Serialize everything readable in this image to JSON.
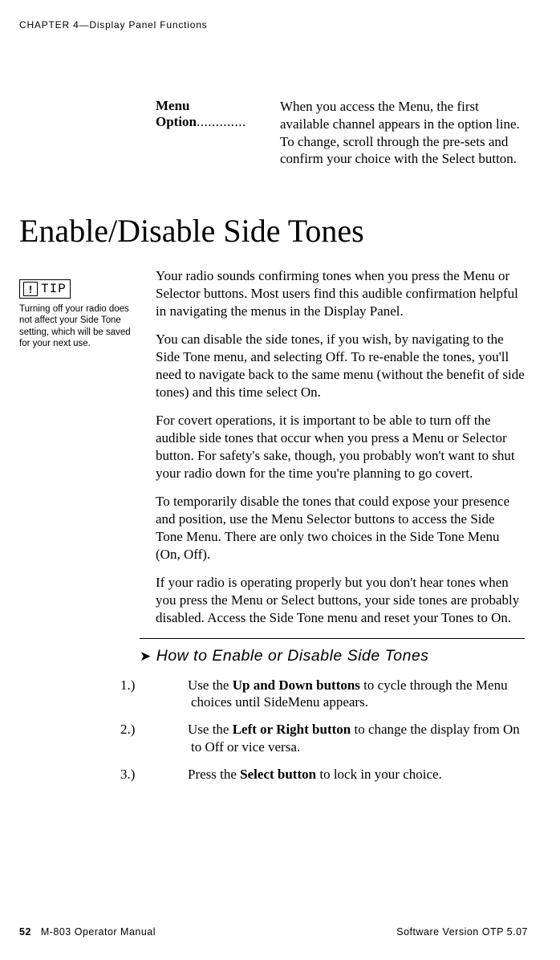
{
  "runningHead": "CHAPTER 4—Display Panel Functions",
  "menuOption": {
    "label": "Menu Option",
    "dots": ".............",
    "text": "When you access the Menu, the first available channel appears in the option line. To change, scroll through the pre-sets and confirm your choice with the Select button."
  },
  "sectionTitle": "Enable/Disable Side Tones",
  "tip": {
    "badgeWarn": "!",
    "badgeWord": "TIP",
    "text": "Turning off your radio does not affect your Side Tone setting, which will be saved for your next use."
  },
  "paras": {
    "p1": "Your radio sounds confirming tones when you press the Menu or Selector buttons. Most users find this audible confirmation helpful in navigating the menus in the Display Panel.",
    "p2": "You can disable the side tones, if you wish, by navigating to the Side Tone menu, and selecting Off. To re-enable the tones, you'll need to navigate back to the same menu (without the benefit of side tones) and this time select On.",
    "p3": "For covert operations, it is important to be able to turn off the audible side tones that occur when you press a Menu or Selector button. For safety's sake, though, you probably won't want to shut your radio down for the time you're planning to go covert.",
    "p4": "To temporarily disable the tones that could expose your presence and position, use the Menu Selector buttons to access the Side Tone Menu. There are only two choices in the Side Tone Menu (On, Off).",
    "p5": "If your radio is operating properly but you don't hear tones when you press the Menu or Select buttons, your side tones are probably disabled. Access the Side Tone menu and reset your Tones to On."
  },
  "howto": {
    "arrow": "➤",
    "title": "How to Enable or Disable Side Tones",
    "steps": {
      "s1": {
        "num": "1.)",
        "pre": "Use the ",
        "bold": "Up and Down buttons",
        "post": " to cycle through the Menu choices until SideMenu appears."
      },
      "s2": {
        "num": "2.)",
        "pre": "Use the ",
        "bold": "Left or Right button",
        "post": " to change the display from On to Off or vice versa."
      },
      "s3": {
        "num": "3.)",
        "pre": "Press the ",
        "bold": "Select button",
        "post": " to lock in your choice."
      }
    }
  },
  "footer": {
    "pageNum": "52",
    "left": "M-803 Operator Manual",
    "right": "Software Version OTP 5.07"
  }
}
